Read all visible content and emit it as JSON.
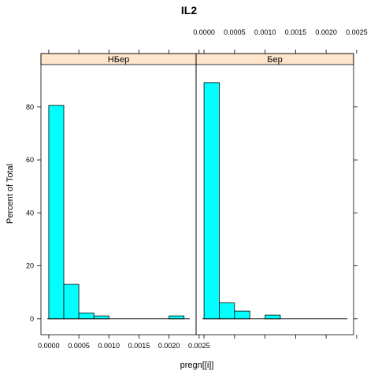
{
  "chart_data": {
    "type": "bar",
    "title": "IL2",
    "xlabel": "pregn[[i]]",
    "ylabel": "Percent of Total",
    "xlim": [
      -0.00013,
      0.00245
    ],
    "ylim": [
      -6,
      96
    ],
    "x_ticks": [
      "0.0000",
      "0.0005",
      "0.0010",
      "0.0015",
      "0.0020",
      "0.0025"
    ],
    "x_tick_values": [
      0,
      0.0005,
      0.001,
      0.0015,
      0.002,
      0.0025
    ],
    "y_ticks": [
      "0",
      "20",
      "40",
      "60",
      "80"
    ],
    "y_tick_values": [
      0,
      20,
      40,
      60,
      80
    ],
    "bin_edges": [
      0,
      0.00025,
      0.0005,
      0.00075,
      0.001,
      0.00125,
      0.0015,
      0.00175,
      0.002,
      0.00225
    ],
    "bar_color": "#00FFFF",
    "strip_color": "#FFE5CC",
    "panels": [
      {
        "name": "НБер",
        "values": [
          80.6,
          13.0,
          2.2,
          1.1,
          0.0,
          0.0,
          0.0,
          0.0,
          1.1
        ]
      },
      {
        "name": "Бер",
        "values": [
          89.2,
          6.0,
          2.9,
          0.0,
          1.4,
          0.0,
          0.0,
          0.0,
          0.0
        ]
      }
    ]
  }
}
